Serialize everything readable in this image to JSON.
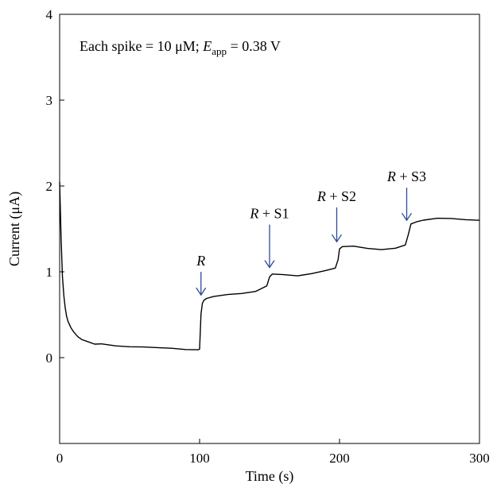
{
  "chart_data": {
    "type": "line",
    "title": "",
    "xlabel": "Time (s)",
    "ylabel": "Current (μA)",
    "xlim": [
      0,
      300
    ],
    "ylim": [
      -1,
      4
    ],
    "xticks": [
      0,
      100,
      200,
      300
    ],
    "yticks": [
      0,
      1,
      2,
      3,
      4
    ],
    "grid": false,
    "annotation": {
      "lead": "Each spike = 10 μM; ",
      "var": "E",
      "sub": "app",
      "tail": " = 0.38 V"
    },
    "series": [
      {
        "color": "#000000",
        "x": [
          0,
          1,
          2,
          3,
          4,
          5,
          6,
          8,
          10,
          13,
          16,
          20,
          25,
          30,
          40,
          50,
          60,
          70,
          80,
          90,
          99,
          100,
          101,
          102,
          103,
          105,
          110,
          120,
          130,
          140,
          148,
          150,
          152,
          160,
          170,
          180,
          190,
          197,
          199,
          200,
          202,
          210,
          220,
          230,
          240,
          247,
          249,
          251,
          255,
          260,
          270,
          280,
          290,
          300
        ],
        "y": [
          2.05,
          1.4,
          0.95,
          0.72,
          0.58,
          0.48,
          0.42,
          0.35,
          0.3,
          0.25,
          0.21,
          0.19,
          0.17,
          0.16,
          0.14,
          0.12,
          0.11,
          0.11,
          0.1,
          0.09,
          0.08,
          0.09,
          0.5,
          0.64,
          0.68,
          0.7,
          0.72,
          0.75,
          0.76,
          0.78,
          0.82,
          0.93,
          0.97,
          0.96,
          0.95,
          0.97,
          1.0,
          1.03,
          1.15,
          1.27,
          1.3,
          1.3,
          1.28,
          1.27,
          1.28,
          1.3,
          1.42,
          1.55,
          1.58,
          1.6,
          1.62,
          1.62,
          1.61,
          1.6
        ]
      }
    ],
    "markers": [
      {
        "label": "R",
        "x": 101,
        "arrow_top": 1.0,
        "arrow_bottom": 0.73
      },
      {
        "label": "R + S1",
        "x": 150,
        "arrow_top": 1.55,
        "arrow_bottom": 1.05
      },
      {
        "label": "R + S2",
        "x": 198,
        "arrow_top": 1.75,
        "arrow_bottom": 1.35
      },
      {
        "label": "R + S3",
        "x": 248,
        "arrow_top": 1.98,
        "arrow_bottom": 1.6
      }
    ],
    "marker_color": "#2b4b9a"
  }
}
